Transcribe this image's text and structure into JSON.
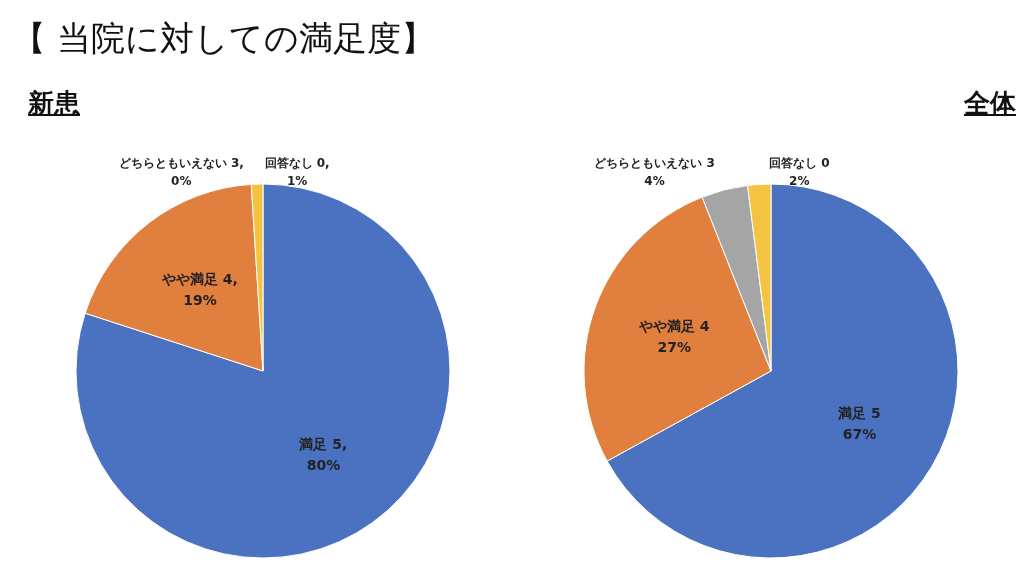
{
  "chart_data": [
    {
      "type": "pie",
      "title": "新患",
      "annotations": [
        "【 当院に対しての満足度】"
      ],
      "categories": [
        "満足 5",
        "やや満足 4",
        "どちらともいえない 3",
        "回答なし 0"
      ],
      "values": [
        80,
        19,
        0,
        1
      ],
      "value_labels": [
        ",\n80%",
        ",\n19%",
        ",\n0%",
        ",\n1%"
      ],
      "colors": [
        "#4a72c0",
        "#e07f3e",
        "#a5a5a5",
        "#f5c342"
      ]
    },
    {
      "type": "pie",
      "title": "全体",
      "categories": [
        "満足 5",
        "やや満足 4",
        "どちらともいえない 3",
        "回答なし 0"
      ],
      "values": [
        67,
        27,
        4,
        2
      ],
      "value_labels": [
        "67%",
        "27%",
        "4%",
        "2%"
      ],
      "colors": [
        "#4a72c0",
        "#e07f3e",
        "#a5a5a5",
        "#f5c342"
      ]
    }
  ]
}
